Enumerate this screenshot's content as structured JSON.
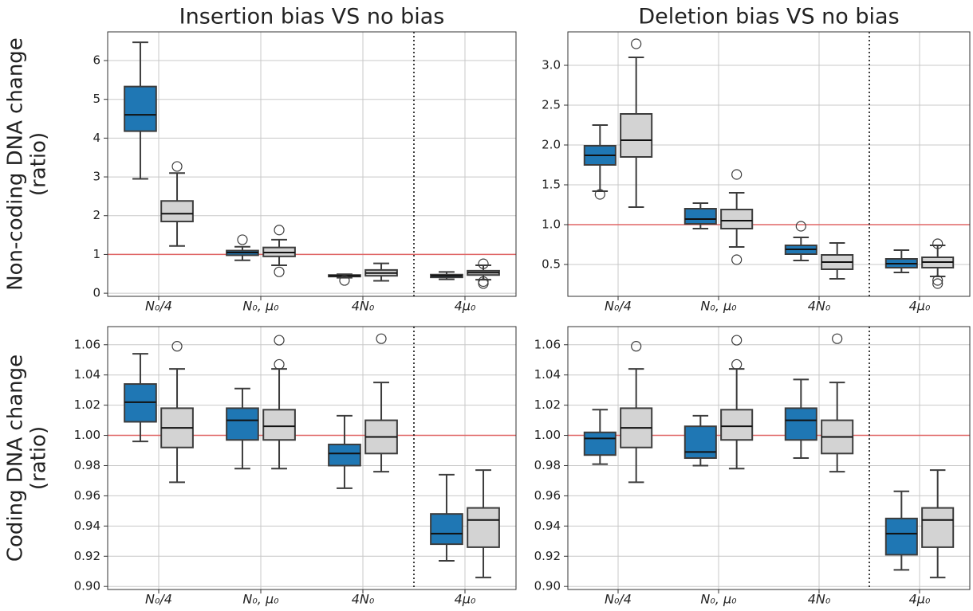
{
  "chart_data": [
    {
      "type": "box",
      "title": "Insertion bias VS no bias",
      "ylabel": [
        "Non-coding DNA change",
        "(ratio)"
      ],
      "categories": [
        "N₀/4",
        "N₀, μ₀",
        "4N₀",
        "4μ₀"
      ],
      "ylim": [
        -0.08,
        6.74
      ],
      "yticks": [
        0,
        1,
        2,
        3,
        4,
        5,
        6
      ],
      "grid": true,
      "hline": 1,
      "hline_color": "#e06666",
      "vline": 2.5,
      "series": [
        {
          "color": "#1f77b4",
          "boxes": [
            {
              "whislo": 2.95,
              "q1": 4.18,
              "med": 4.6,
              "q3": 5.33,
              "whishi": 6.47,
              "fliers": []
            },
            {
              "whislo": 0.85,
              "q1": 0.98,
              "med": 1.05,
              "q3": 1.1,
              "whishi": 1.2,
              "fliers": [
                1.38
              ]
            },
            {
              "whislo": 0.4,
              "q1": 0.43,
              "med": 0.45,
              "q3": 0.47,
              "whishi": 0.49,
              "fliers": [
                0.33
              ]
            },
            {
              "whislo": 0.36,
              "q1": 0.41,
              "med": 0.45,
              "q3": 0.48,
              "whishi": 0.55,
              "fliers": []
            }
          ]
        },
        {
          "color": "#d3d3d3",
          "boxes": [
            {
              "whislo": 1.22,
              "q1": 1.85,
              "med": 2.05,
              "q3": 2.38,
              "whishi": 3.1,
              "fliers": [
                3.27
              ]
            },
            {
              "whislo": 0.72,
              "q1": 0.95,
              "med": 1.05,
              "q3": 1.18,
              "whishi": 1.38,
              "fliers": [
                0.55,
                1.63
              ]
            },
            {
              "whislo": 0.32,
              "q1": 0.45,
              "med": 0.52,
              "q3": 0.6,
              "whishi": 0.77,
              "fliers": []
            },
            {
              "whislo": 0.35,
              "q1": 0.47,
              "med": 0.53,
              "q3": 0.58,
              "whishi": 0.72,
              "fliers": [
                0.76,
                0.3,
                0.25
              ]
            }
          ]
        }
      ]
    },
    {
      "type": "box",
      "title": "Deletion bias VS no bias",
      "categories": [
        "N₀/4",
        "N₀, μ₀",
        "4N₀",
        "4μ₀"
      ],
      "ylim": [
        0.1,
        3.42
      ],
      "yticks": [
        0.5,
        {
          "value": 1,
          "label": "1.0"
        },
        1.5,
        {
          "value": 2,
          "label": "2.0"
        },
        2.5,
        {
          "value": 3,
          "label": "3.0"
        }
      ],
      "grid": true,
      "hline": 1,
      "hline_color": "#e06666",
      "vline": 2.5,
      "series": [
        {
          "color": "#1f77b4",
          "boxes": [
            {
              "whislo": 1.42,
              "q1": 1.75,
              "med": 1.87,
              "q3": 1.99,
              "whishi": 2.25,
              "fliers": [
                1.38
              ]
            },
            {
              "whislo": 0.95,
              "q1": 1.01,
              "med": 1.07,
              "q3": 1.2,
              "whishi": 1.27,
              "fliers": []
            },
            {
              "whislo": 0.55,
              "q1": 0.63,
              "med": 0.69,
              "q3": 0.74,
              "whishi": 0.84,
              "fliers": [
                0.98
              ]
            },
            {
              "whislo": 0.4,
              "q1": 0.46,
              "med": 0.51,
              "q3": 0.57,
              "whishi": 0.68,
              "fliers": []
            }
          ]
        },
        {
          "color": "#d3d3d3",
          "boxes": [
            {
              "whislo": 1.22,
              "q1": 1.85,
              "med": 2.06,
              "q3": 2.39,
              "whishi": 3.1,
              "fliers": [
                3.27
              ]
            },
            {
              "whislo": 0.72,
              "q1": 0.95,
              "med": 1.05,
              "q3": 1.19,
              "whishi": 1.4,
              "fliers": [
                0.56,
                1.63
              ]
            },
            {
              "whislo": 0.32,
              "q1": 0.44,
              "med": 0.53,
              "q3": 0.62,
              "whishi": 0.77,
              "fliers": []
            },
            {
              "whislo": 0.35,
              "q1": 0.46,
              "med": 0.53,
              "q3": 0.59,
              "whishi": 0.74,
              "fliers": [
                0.76,
                0.3,
                0.26
              ]
            }
          ]
        }
      ]
    },
    {
      "type": "box",
      "ylabel": [
        "Coding DNA change",
        "(ratio)"
      ],
      "categories": [
        "N₀/4",
        "N₀, μ₀",
        "4N₀",
        "4μ₀"
      ],
      "ylim": [
        0.898,
        1.072
      ],
      "yticks": [
        {
          "value": 0.9,
          "label": "0.90"
        },
        0.92,
        0.94,
        0.96,
        0.98,
        {
          "value": 1,
          "label": "1.00"
        },
        1.02,
        1.04,
        1.06
      ],
      "grid": true,
      "hline": 1,
      "hline_color": "#e06666",
      "vline": 2.5,
      "series": [
        {
          "color": "#1f77b4",
          "boxes": [
            {
              "whislo": 0.996,
              "q1": 1.009,
              "med": 1.022,
              "q3": 1.034,
              "whishi": 1.054,
              "fliers": []
            },
            {
              "whislo": 0.978,
              "q1": 0.997,
              "med": 1.01,
              "q3": 1.018,
              "whishi": 1.031,
              "fliers": []
            },
            {
              "whislo": 0.965,
              "q1": 0.98,
              "med": 0.988,
              "q3": 0.994,
              "whishi": 1.013,
              "fliers": []
            },
            {
              "whislo": 0.917,
              "q1": 0.928,
              "med": 0.935,
              "q3": 0.948,
              "whishi": 0.974,
              "fliers": []
            }
          ]
        },
        {
          "color": "#d3d3d3",
          "boxes": [
            {
              "whislo": 0.969,
              "q1": 0.992,
              "med": 1.005,
              "q3": 1.018,
              "whishi": 1.044,
              "fliers": [
                1.059
              ]
            },
            {
              "whislo": 0.978,
              "q1": 0.997,
              "med": 1.006,
              "q3": 1.017,
              "whishi": 1.044,
              "fliers": [
                1.047,
                1.063
              ]
            },
            {
              "whislo": 0.976,
              "q1": 0.988,
              "med": 0.999,
              "q3": 1.01,
              "whishi": 1.035,
              "fliers": [
                1.064
              ]
            },
            {
              "whislo": 0.906,
              "q1": 0.926,
              "med": 0.944,
              "q3": 0.952,
              "whishi": 0.977,
              "fliers": []
            }
          ]
        }
      ]
    },
    {
      "type": "box",
      "categories": [
        "N₀/4",
        "N₀, μ₀",
        "4N₀",
        "4μ₀"
      ],
      "ylim": [
        0.898,
        1.072
      ],
      "yticks": [
        {
          "value": 0.9,
          "label": "0.90"
        },
        0.92,
        0.94,
        0.96,
        0.98,
        {
          "value": 1,
          "label": "1.00"
        },
        1.02,
        1.04,
        1.06
      ],
      "grid": true,
      "hline": 1,
      "hline_color": "#e06666",
      "vline": 2.5,
      "series": [
        {
          "color": "#1f77b4",
          "boxes": [
            {
              "whislo": 0.981,
              "q1": 0.987,
              "med": 0.998,
              "q3": 1.002,
              "whishi": 1.017,
              "fliers": []
            },
            {
              "whislo": 0.98,
              "q1": 0.985,
              "med": 0.989,
              "q3": 1.006,
              "whishi": 1.013,
              "fliers": []
            },
            {
              "whislo": 0.985,
              "q1": 0.997,
              "med": 1.01,
              "q3": 1.018,
              "whishi": 1.037,
              "fliers": []
            },
            {
              "whislo": 0.911,
              "q1": 0.921,
              "med": 0.935,
              "q3": 0.945,
              "whishi": 0.963,
              "fliers": []
            }
          ]
        },
        {
          "color": "#d3d3d3",
          "boxes": [
            {
              "whislo": 0.969,
              "q1": 0.992,
              "med": 1.005,
              "q3": 1.018,
              "whishi": 1.044,
              "fliers": [
                1.059
              ]
            },
            {
              "whislo": 0.978,
              "q1": 0.997,
              "med": 1.006,
              "q3": 1.017,
              "whishi": 1.044,
              "fliers": [
                1.047,
                1.063
              ]
            },
            {
              "whislo": 0.976,
              "q1": 0.988,
              "med": 0.999,
              "q3": 1.01,
              "whishi": 1.035,
              "fliers": [
                1.064
              ]
            },
            {
              "whislo": 0.906,
              "q1": 0.926,
              "med": 0.944,
              "q3": 0.952,
              "whishi": 0.977,
              "fliers": []
            }
          ]
        }
      ]
    }
  ]
}
